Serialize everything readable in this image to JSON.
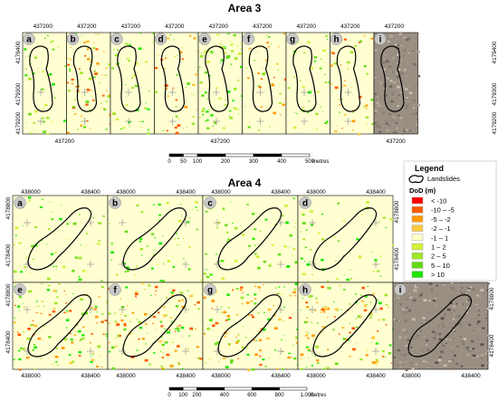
{
  "area3": {
    "title": "Area 3",
    "panels": [
      "a",
      "b",
      "c",
      "d",
      "e",
      "f",
      "g",
      "h",
      "i"
    ],
    "x_tick": "437200",
    "y_ticks": [
      "4179400",
      "4179300",
      "4179200"
    ],
    "scale": {
      "ticks": [
        "0",
        "50",
        "100",
        "200",
        "300",
        "400",
        "500"
      ],
      "unit": "metres"
    }
  },
  "area4": {
    "title": "Area 4",
    "panels": [
      "a",
      "b",
      "c",
      "d",
      "e",
      "f",
      "g",
      "h",
      "i"
    ],
    "x_ticks": [
      "438000",
      "438400"
    ],
    "y_ticks": [
      "4178800",
      "4178400"
    ],
    "scale": {
      "ticks": [
        "0",
        "100",
        "200",
        "400",
        "600",
        "800",
        "1.000"
      ],
      "unit": "metres"
    }
  },
  "legend": {
    "title": "Legend",
    "landslides_label": "Landslides",
    "dod_label": "DoD (m)",
    "classes": [
      {
        "label": "< -10",
        "color": "#ff0000"
      },
      {
        "label": "-10 – -5",
        "color": "#ff5a00"
      },
      {
        "label": "-5 – -2",
        "color": "#ff9a00"
      },
      {
        "label": "-2 – -1",
        "color": "#ffc940"
      },
      {
        "label": "-1 – 1",
        "color": "#ffffc8"
      },
      {
        "label": "1 – 2",
        "color": "#d2f03c"
      },
      {
        "label": "2 – 5",
        "color": "#a0e628"
      },
      {
        "label": "5 – 10",
        "color": "#64dc14"
      },
      {
        "label": "> 10",
        "color": "#1ee600"
      }
    ]
  },
  "colors": {
    "background": "#ffffd2",
    "outline": "#000000",
    "ortho": "#9a8f83"
  }
}
